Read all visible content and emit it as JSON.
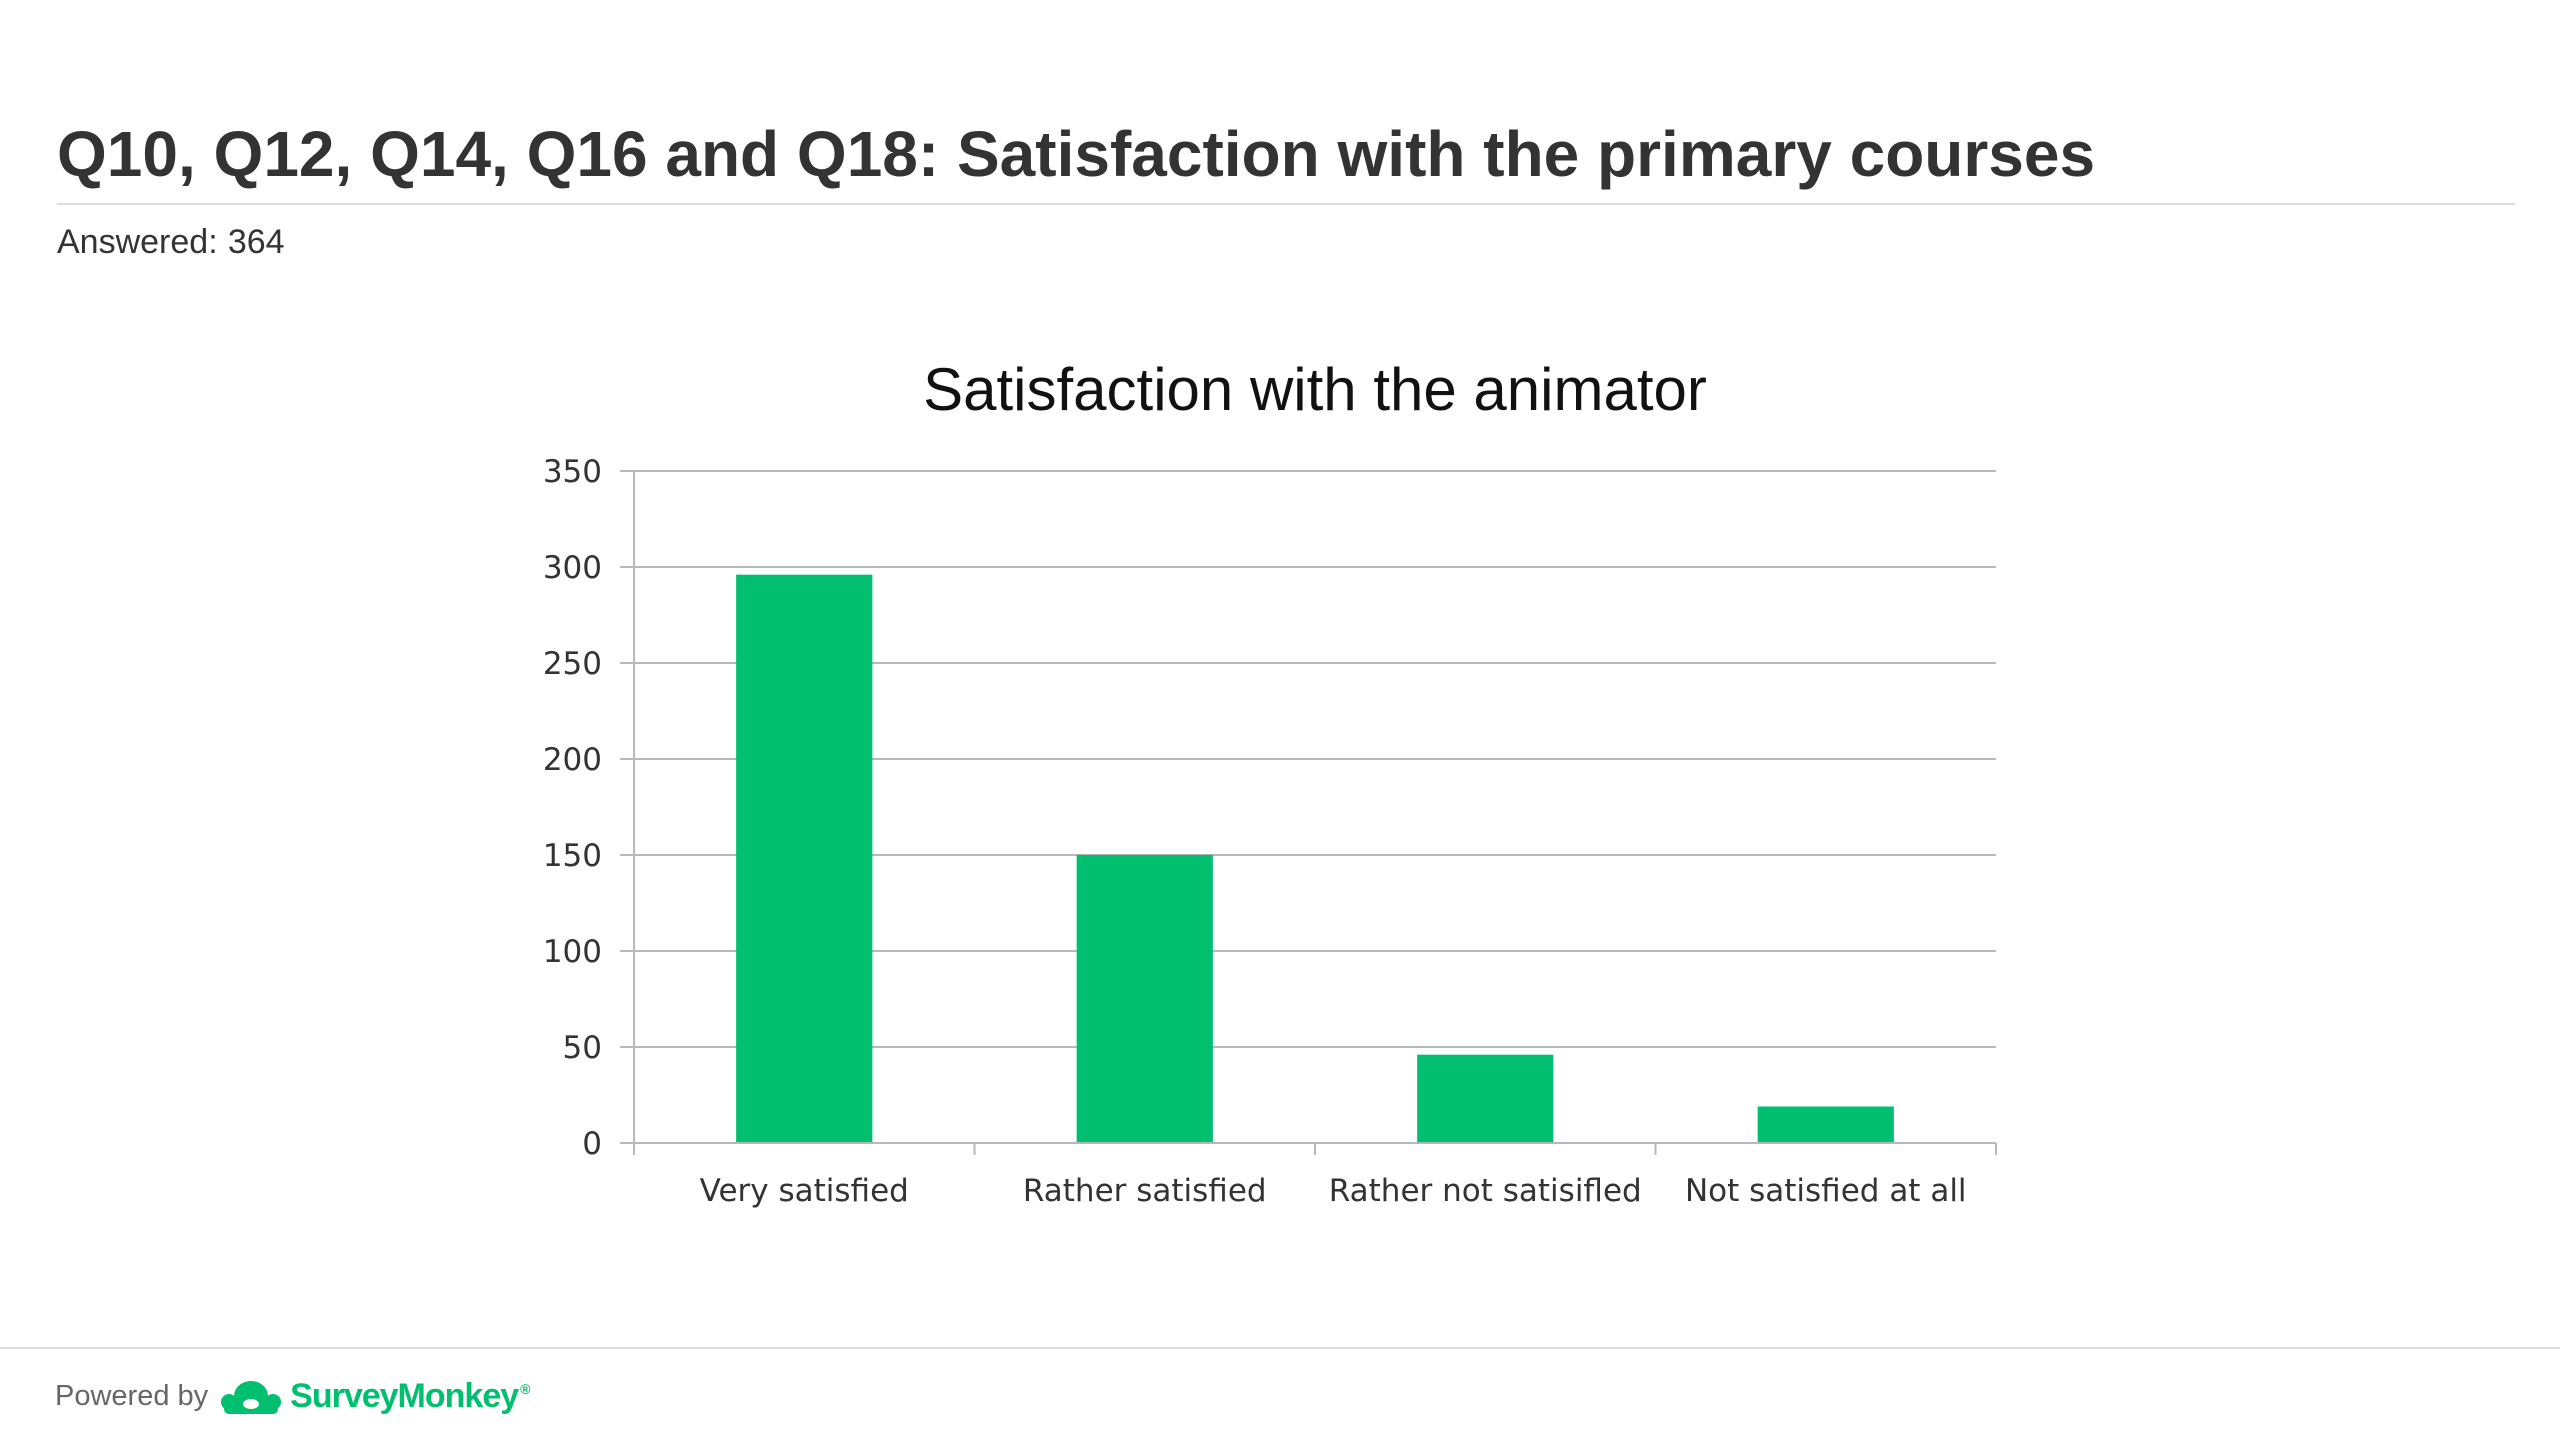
{
  "header": {
    "title": "Q10, Q12, Q14, Q16 and Q18: Satisfaction with the primary courses",
    "answered_label": "Answered:",
    "answered_count": "364"
  },
  "chart_data": {
    "type": "bar",
    "title": "Satisfaction with the animator",
    "xlabel": "",
    "ylabel": "",
    "categories": [
      "Very satisfied",
      "Rather satisfied",
      "Rather not satisifled",
      "Not satisfied at all"
    ],
    "values": [
      296,
      150,
      46,
      19
    ],
    "ylim": [
      0,
      350
    ],
    "yticks": [
      0,
      50,
      100,
      150,
      200,
      250,
      300,
      350
    ],
    "grid": true,
    "legend": "none",
    "bar_color": "#00bf6f"
  },
  "footer": {
    "powered_by": "Powered by",
    "brand": "SurveyMonkey",
    "brand_mark": "®",
    "brand_color": "#00bf6f",
    "logo_icon": "surveymonkey-logo-icon"
  }
}
